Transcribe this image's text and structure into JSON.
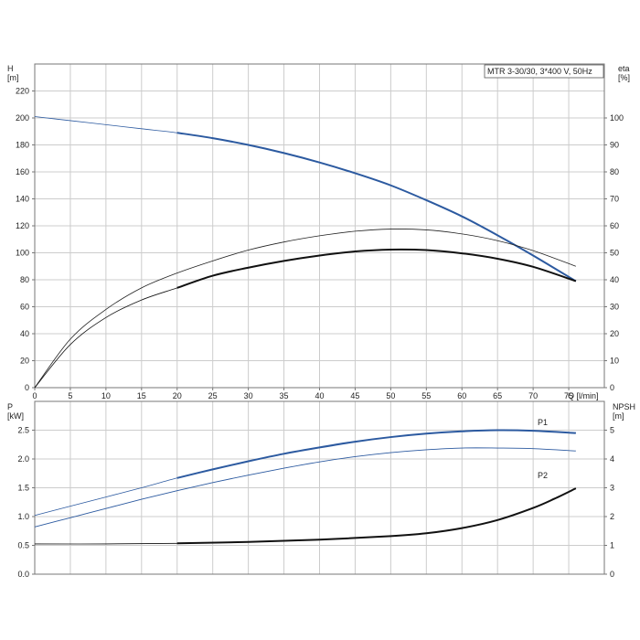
{
  "chart_data": [
    {
      "type": "line",
      "title": "MTR 3-30/30, 3*400 V, 50Hz",
      "xlabel": "Q [l/min]",
      "ylabel": "H\n[m]",
      "y2label": "eta\n[%]",
      "xlim": [
        0,
        80
      ],
      "ylim": [
        0,
        240
      ],
      "y2lim": [
        0,
        120
      ],
      "x_ticks": [
        0,
        5,
        10,
        15,
        20,
        25,
        30,
        35,
        40,
        45,
        50,
        55,
        60,
        65,
        70,
        75
      ],
      "y_ticks": [
        0,
        20,
        40,
        60,
        80,
        100,
        120,
        140,
        160,
        180,
        200,
        220
      ],
      "y2_ticks": [
        0,
        10,
        20,
        30,
        40,
        50,
        60,
        70,
        80,
        90,
        100
      ],
      "grid": true,
      "series": [
        {
          "axis": "left",
          "color": "#2c5aa0",
          "thin_until": 20,
          "x": [
            0,
            5,
            10,
            15,
            20,
            25,
            30,
            35,
            40,
            45,
            50,
            55,
            60,
            65,
            70,
            76
          ],
          "y": [
            201,
            198,
            195,
            192,
            189,
            185,
            180,
            174,
            167,
            159,
            150,
            139,
            127,
            113,
            98,
            79
          ]
        },
        {
          "axis": "right",
          "color": "#222222",
          "width": 0.8,
          "x": [
            0,
            5,
            10,
            15,
            20,
            25,
            30,
            35,
            40,
            45,
            50,
            55,
            60,
            65,
            70,
            76
          ],
          "y": [
            0,
            18,
            29,
            37,
            42.5,
            47,
            51,
            54,
            56.3,
            58,
            58.8,
            58.5,
            57,
            54.5,
            50.8,
            45
          ]
        },
        {
          "axis": "right",
          "color": "#111111",
          "thin_until": 20,
          "x": [
            0,
            5,
            10,
            15,
            20,
            25,
            30,
            35,
            40,
            45,
            50,
            55,
            60,
            65,
            70,
            76
          ],
          "y": [
            0,
            16,
            26,
            32.5,
            37,
            41.5,
            44.5,
            47,
            49,
            50.5,
            51.2,
            51,
            49.8,
            47.8,
            44.8,
            39.5
          ]
        }
      ]
    },
    {
      "type": "line",
      "xlabel": "",
      "ylabel": "P\n[kW]",
      "y2label": "NPSH\n[m]",
      "xlim": [
        0,
        80
      ],
      "ylim": [
        0,
        3.0
      ],
      "y2lim": [
        0,
        6
      ],
      "y_ticks": [
        0.0,
        0.5,
        1.0,
        1.5,
        2.0,
        2.5
      ],
      "y2_ticks": [
        0,
        1,
        2,
        3,
        4,
        5
      ],
      "grid": true,
      "series": [
        {
          "name": "P1",
          "axis": "left",
          "color": "#2c5aa0",
          "thin_until": 20,
          "x": [
            0,
            5,
            10,
            15,
            20,
            25,
            30,
            35,
            40,
            45,
            50,
            55,
            60,
            65,
            70,
            76
          ],
          "y": [
            1.02,
            1.18,
            1.34,
            1.5,
            1.67,
            1.82,
            1.96,
            2.09,
            2.2,
            2.3,
            2.38,
            2.44,
            2.48,
            2.5,
            2.49,
            2.45
          ]
        },
        {
          "name": "P2",
          "axis": "left",
          "color": "#2c5aa0",
          "width": 0.9,
          "x": [
            0,
            5,
            10,
            15,
            20,
            25,
            30,
            35,
            40,
            45,
            50,
            55,
            60,
            65,
            70,
            76
          ],
          "y": [
            0.82,
            0.98,
            1.14,
            1.3,
            1.45,
            1.59,
            1.72,
            1.84,
            1.95,
            2.04,
            2.11,
            2.16,
            2.19,
            2.19,
            2.18,
            2.14
          ]
        },
        {
          "axis": "right",
          "color": "#111111",
          "thin_until": 20,
          "x": [
            0,
            10,
            20,
            30,
            40,
            50,
            55,
            60,
            65,
            70,
            73,
            76
          ],
          "y": [
            1.05,
            1.05,
            1.07,
            1.12,
            1.2,
            1.32,
            1.42,
            1.6,
            1.88,
            2.3,
            2.62,
            2.98
          ]
        }
      ]
    }
  ]
}
